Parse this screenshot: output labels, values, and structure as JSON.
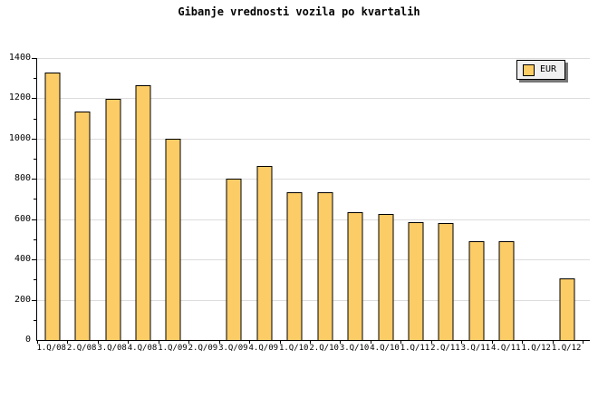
{
  "title": "Gibanje vrednosti vozila po kvartalih",
  "legend": {
    "label": "EUR",
    "swatch_color": "#fccc66"
  },
  "colors": {
    "background": "#ffffff",
    "bar_fill": "#fccc66",
    "bar_border": "#000000",
    "gridline": "#dcdcdc",
    "axis": "#000000",
    "legend_bg": "#f0f0f0",
    "legend_shadow": "#777777",
    "text": "#000000"
  },
  "chart_data": {
    "type": "bar",
    "title": "Gibanje vrednosti vozila po kvartalih",
    "categories": [
      "1.Q/08",
      "2.Q/08",
      "3.Q/08",
      "4.Q/08",
      "1.Q/09",
      "2.Q/09",
      "3.Q/09",
      "4.Q/09",
      "1.Q/10",
      "2.Q/10",
      "3.Q/10",
      "4.Q/10",
      "1.Q/11",
      "2.Q/11",
      "3.Q/11",
      "4.Q/11",
      "1.Q/12",
      "1.Q/12"
    ],
    "series": [
      {
        "name": "EUR",
        "values": [
          1325,
          1130,
          1195,
          1260,
          995,
          null,
          795,
          860,
          730,
          730,
          630,
          620,
          580,
          575,
          485,
          485,
          null,
          300
        ]
      }
    ],
    "xlabel": "",
    "ylabel": "",
    "ylim": [
      0,
      1400
    ],
    "ytick_major_step": 200,
    "ytick_minor_step": 100,
    "ytick_labels": [
      "0",
      "200",
      "400",
      "600",
      "800",
      "1000",
      "1200",
      "1400"
    ],
    "grid": "horizontal-major",
    "legend_position": "top-right"
  }
}
